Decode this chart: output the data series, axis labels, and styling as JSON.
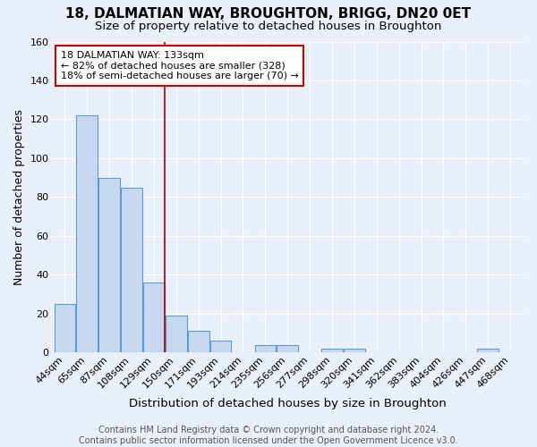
{
  "title": "18, DALMATIAN WAY, BROUGHTON, BRIGG, DN20 0ET",
  "subtitle": "Size of property relative to detached houses in Broughton",
  "xlabel": "Distribution of detached houses by size in Broughton",
  "ylabel": "Number of detached properties",
  "footer_line1": "Contains HM Land Registry data © Crown copyright and database right 2024.",
  "footer_line2": "Contains public sector information licensed under the Open Government Licence v3.0.",
  "categories": [
    "44sqm",
    "65sqm",
    "87sqm",
    "108sqm",
    "129sqm",
    "150sqm",
    "171sqm",
    "193sqm",
    "214sqm",
    "235sqm",
    "256sqm",
    "277sqm",
    "298sqm",
    "320sqm",
    "341sqm",
    "362sqm",
    "383sqm",
    "404sqm",
    "426sqm",
    "447sqm",
    "468sqm"
  ],
  "values": [
    25,
    122,
    90,
    85,
    36,
    19,
    11,
    6,
    0,
    4,
    4,
    0,
    2,
    2,
    0,
    0,
    0,
    0,
    0,
    2,
    0
  ],
  "bar_color": "#c5d8f0",
  "bar_edge_color": "#5b9bd5",
  "background_color": "#eaf0fb",
  "grid_color": "#ffffff",
  "vline_x": 4.5,
  "vline_color": "#aa0000",
  "annotation_text": "18 DALMATIAN WAY: 133sqm\n← 82% of detached houses are smaller (328)\n18% of semi-detached houses are larger (70) →",
  "annotation_box_color": "#ffffff",
  "annotation_box_edge": "#cc0000",
  "ylim": [
    0,
    160
  ],
  "yticks": [
    0,
    20,
    40,
    60,
    80,
    100,
    120,
    140,
    160
  ],
  "title_fontsize": 11,
  "subtitle_fontsize": 9.5,
  "xlabel_fontsize": 9.5,
  "ylabel_fontsize": 9,
  "tick_fontsize": 8,
  "annotation_fontsize": 8,
  "footer_fontsize": 7
}
